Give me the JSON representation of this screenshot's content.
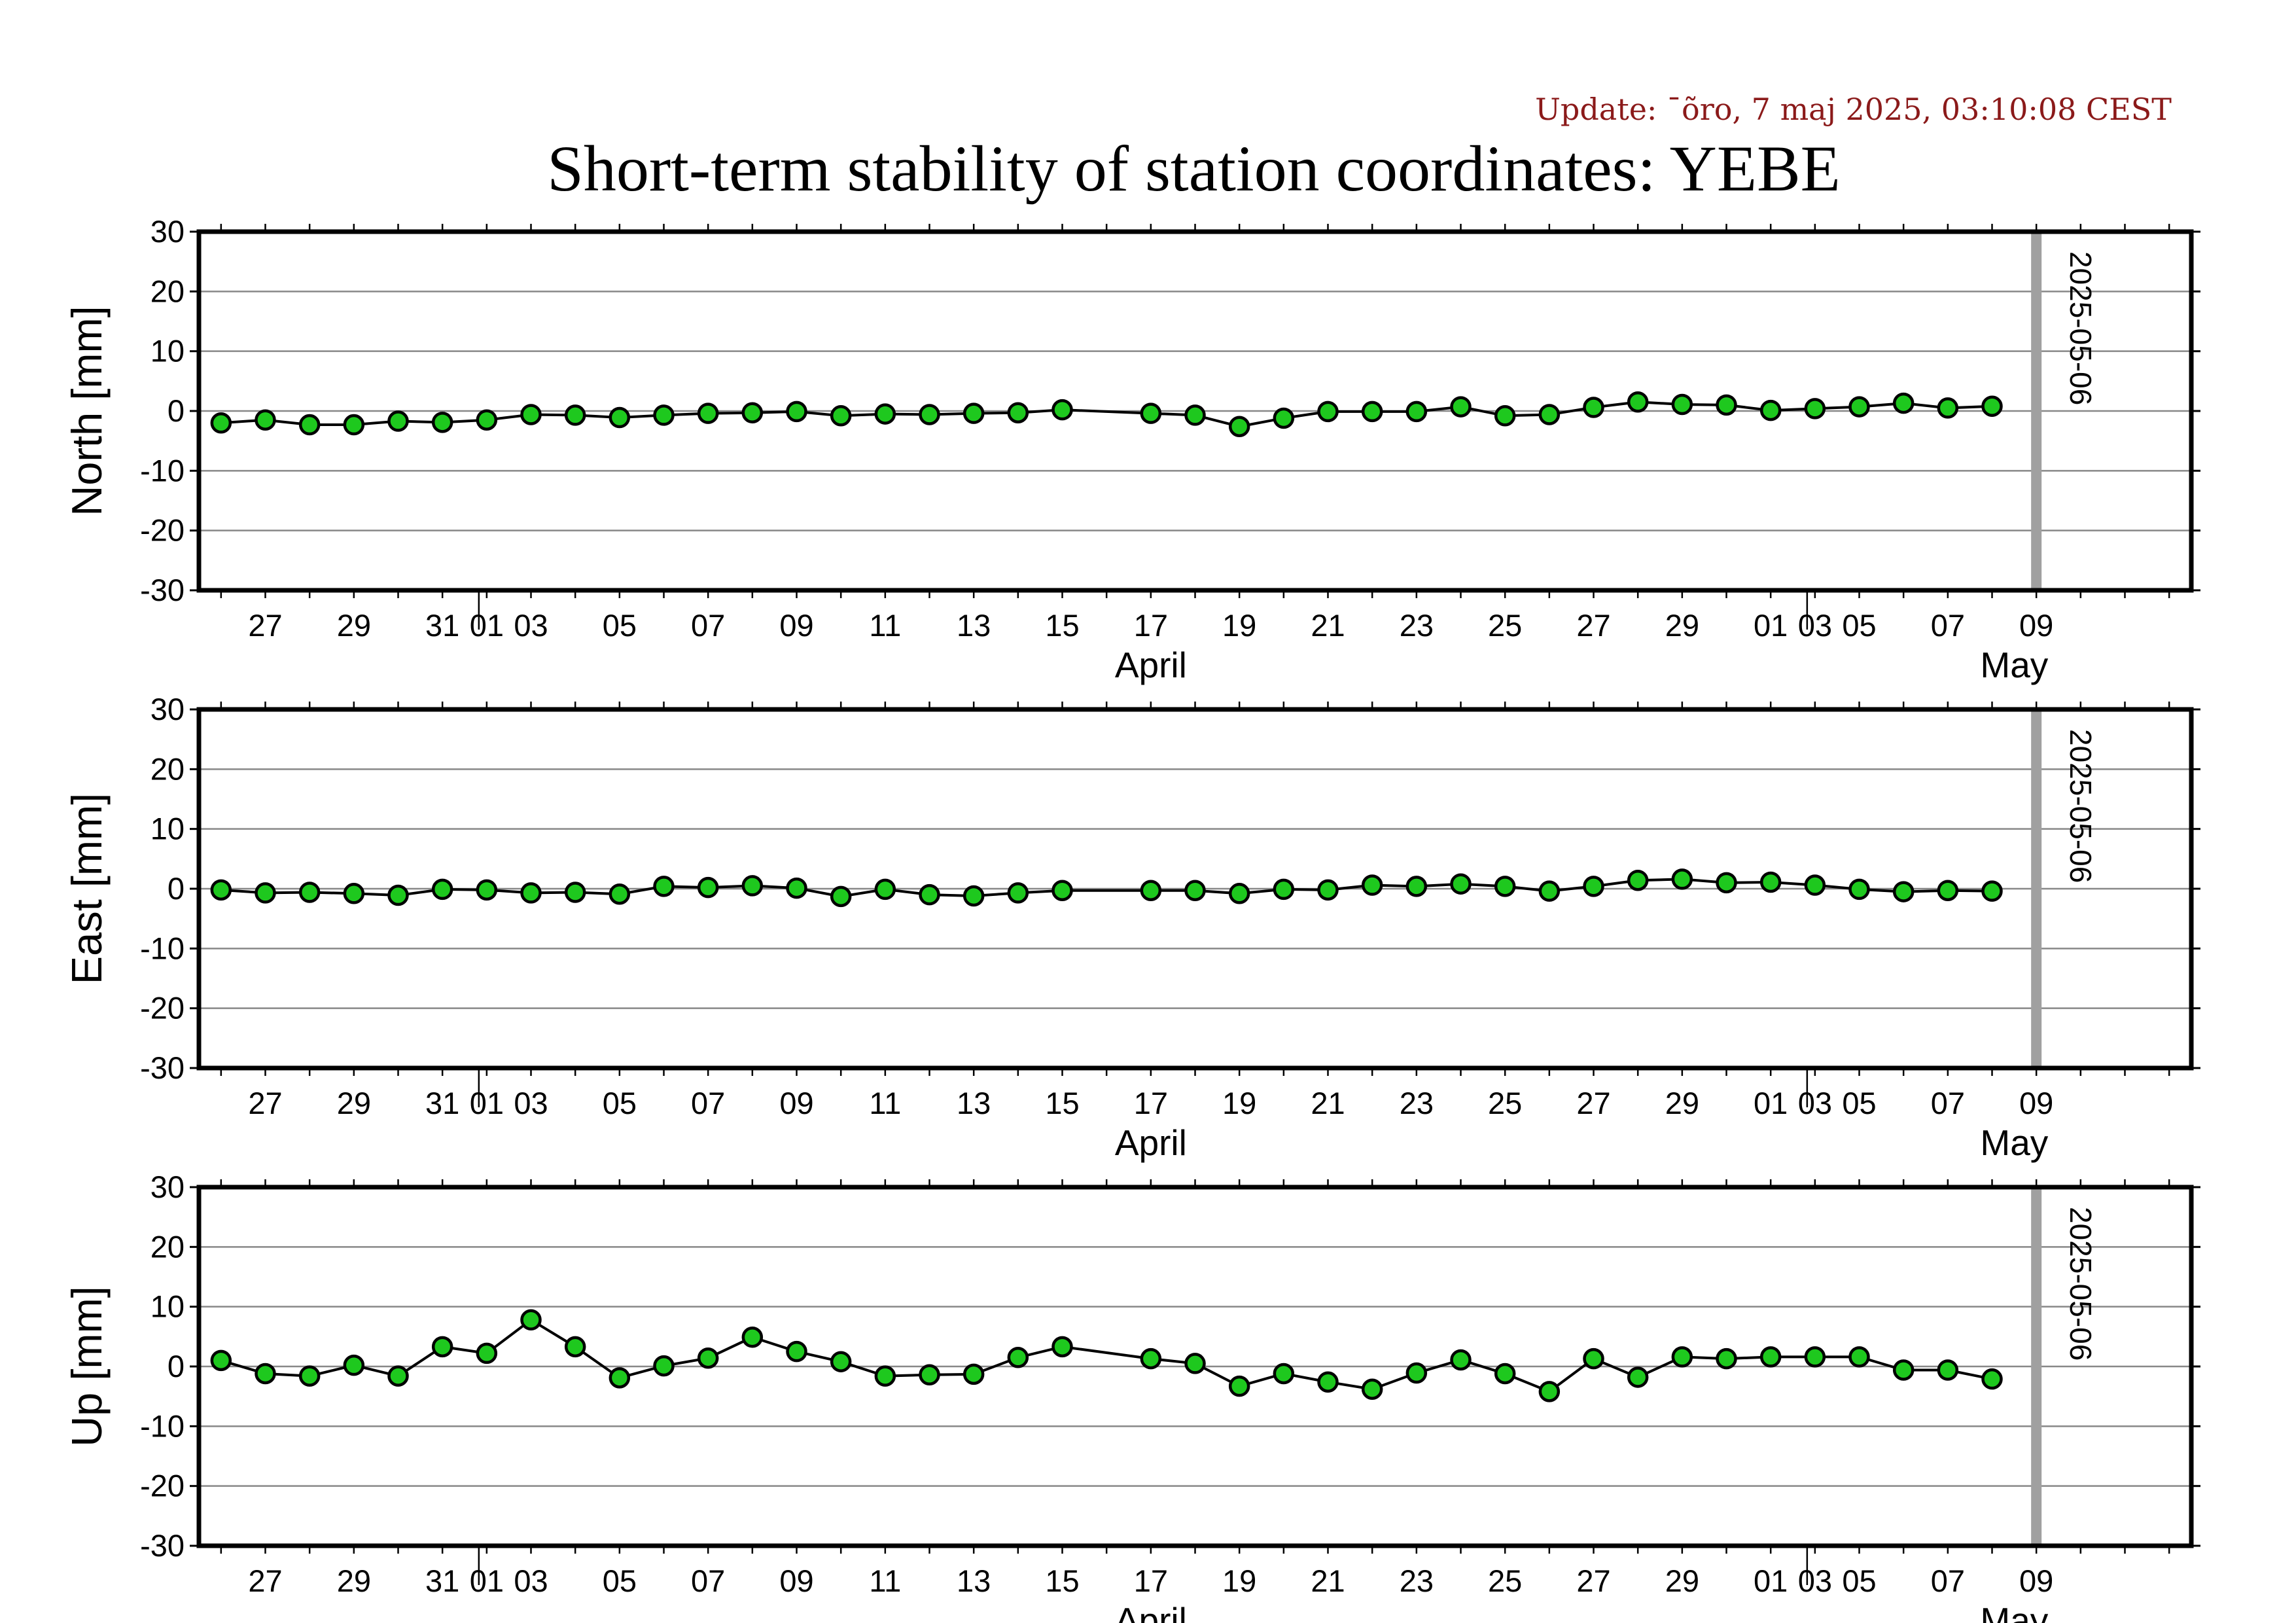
{
  "update": "Update: ¯õro, 7 maj 2025, 03:10:08 CEST",
  "title": "Short-term stability of station coordinates: YEBE",
  "colors": {
    "marker_fill": "#1ec81e",
    "marker_stroke": "#000000",
    "line": "#000000",
    "grid": "#888888",
    "current_day": "#a0a0a0",
    "update_text": "#8b1a1a"
  },
  "chart_data": [
    {
      "type": "line",
      "ylabel": "North [mm]",
      "ylim": [
        -30,
        30
      ],
      "yticks": [
        30,
        20,
        10,
        0,
        -10,
        -20,
        -30
      ],
      "xlim": [
        "2025-03-25T12:00",
        "2025-05-09T12:00"
      ],
      "marker_date": "2025-05-06",
      "x_tick_labels": [
        "27",
        "29",
        "31",
        "01",
        "03",
        "05",
        "07",
        "09",
        "11",
        "13",
        "15",
        "17",
        "19",
        "21",
        "23",
        "25",
        "27",
        "29",
        "01",
        "03",
        "05",
        "07",
        "09"
      ],
      "month_labels": [
        "April",
        "May"
      ],
      "grid": true,
      "series": [
        {
          "x": [
            "2025-03-26",
            "2025-03-27",
            "2025-03-28",
            "2025-03-29",
            "2025-03-30",
            "2025-03-31",
            "2025-04-01",
            "2025-04-02",
            "2025-04-03",
            "2025-04-04",
            "2025-04-05",
            "2025-04-06",
            "2025-04-07",
            "2025-04-08",
            "2025-04-09",
            "2025-04-10",
            "2025-04-11",
            "2025-04-12",
            "2025-04-13",
            "2025-04-14",
            "2025-04-16",
            "2025-04-17",
            "2025-04-18",
            "2025-04-19",
            "2025-04-20",
            "2025-04-21",
            "2025-04-22",
            "2025-04-23",
            "2025-04-24",
            "2025-04-25",
            "2025-04-26",
            "2025-04-27",
            "2025-04-28",
            "2025-04-29",
            "2025-04-30",
            "2025-05-01",
            "2025-05-02",
            "2025-05-03",
            "2025-05-04",
            "2025-05-05"
          ],
          "y": [
            -2,
            -1.5,
            -2.3,
            -2.3,
            -1.7,
            -1.9,
            -1.5,
            -0.6,
            -0.7,
            -1.1,
            -0.7,
            -0.4,
            -0.3,
            -0.1,
            -0.8,
            -0.5,
            -0.6,
            -0.4,
            -0.3,
            0.2,
            -0.4,
            -0.7,
            -2.6,
            -1.2,
            -0.1,
            -0.1,
            -0.1,
            0.7,
            -0.8,
            -0.6,
            0.6,
            1.5,
            1.1,
            1.0,
            0.1,
            0.4,
            0.7,
            1.3,
            0.5,
            0.8
          ]
        }
      ]
    },
    {
      "type": "line",
      "ylabel": "East [mm]",
      "ylim": [
        -30,
        30
      ],
      "yticks": [
        30,
        20,
        10,
        0,
        -10,
        -20,
        -30
      ],
      "xlim": [
        "2025-03-25T12:00",
        "2025-05-09T12:00"
      ],
      "marker_date": "2025-05-06",
      "x_tick_labels": [
        "27",
        "29",
        "31",
        "01",
        "03",
        "05",
        "07",
        "09",
        "11",
        "13",
        "15",
        "17",
        "19",
        "21",
        "23",
        "25",
        "27",
        "29",
        "01",
        "03",
        "05",
        "07",
        "09"
      ],
      "month_labels": [
        "April",
        "May"
      ],
      "grid": true,
      "series": [
        {
          "x": [
            "2025-03-26",
            "2025-03-27",
            "2025-03-28",
            "2025-03-29",
            "2025-03-30",
            "2025-03-31",
            "2025-04-01",
            "2025-04-02",
            "2025-04-03",
            "2025-04-04",
            "2025-04-05",
            "2025-04-06",
            "2025-04-07",
            "2025-04-08",
            "2025-04-09",
            "2025-04-10",
            "2025-04-11",
            "2025-04-12",
            "2025-04-13",
            "2025-04-14",
            "2025-04-16",
            "2025-04-17",
            "2025-04-18",
            "2025-04-19",
            "2025-04-20",
            "2025-04-21",
            "2025-04-22",
            "2025-04-23",
            "2025-04-24",
            "2025-04-25",
            "2025-04-26",
            "2025-04-27",
            "2025-04-28",
            "2025-04-29",
            "2025-04-30",
            "2025-05-01",
            "2025-05-02",
            "2025-05-03",
            "2025-05-04",
            "2025-05-05"
          ],
          "y": [
            -0.2,
            -0.7,
            -0.6,
            -0.8,
            -1.1,
            -0.1,
            -0.2,
            -0.7,
            -0.6,
            -0.9,
            0.4,
            0.2,
            0.5,
            0.1,
            -1.3,
            -0.1,
            -1.0,
            -1.2,
            -0.7,
            -0.3,
            -0.3,
            -0.3,
            -0.8,
            -0.1,
            -0.2,
            0.6,
            0.4,
            0.8,
            0.4,
            -0.4,
            0.4,
            1.4,
            1.6,
            1.0,
            1.1,
            0.6,
            -0.1,
            -0.5,
            -0.3,
            -0.4
          ]
        }
      ]
    },
    {
      "type": "line",
      "ylabel": "Up [mm]",
      "ylim": [
        -30,
        30
      ],
      "yticks": [
        30,
        20,
        10,
        0,
        -10,
        -20,
        -30
      ],
      "xlim": [
        "2025-03-25T12:00",
        "2025-05-09T12:00"
      ],
      "marker_date": "2025-05-06",
      "x_tick_labels": [
        "27",
        "29",
        "31",
        "01",
        "03",
        "05",
        "07",
        "09",
        "11",
        "13",
        "15",
        "17",
        "19",
        "21",
        "23",
        "25",
        "27",
        "29",
        "01",
        "03",
        "05",
        "07",
        "09"
      ],
      "month_labels": [
        "April",
        "May"
      ],
      "grid": true,
      "series": [
        {
          "x": [
            "2025-03-26",
            "2025-03-27",
            "2025-03-28",
            "2025-03-29",
            "2025-03-30",
            "2025-03-31",
            "2025-04-01",
            "2025-04-02",
            "2025-04-03",
            "2025-04-04",
            "2025-04-05",
            "2025-04-06",
            "2025-04-07",
            "2025-04-08",
            "2025-04-09",
            "2025-04-10",
            "2025-04-11",
            "2025-04-12",
            "2025-04-13",
            "2025-04-14",
            "2025-04-16",
            "2025-04-17",
            "2025-04-18",
            "2025-04-19",
            "2025-04-20",
            "2025-04-21",
            "2025-04-22",
            "2025-04-23",
            "2025-04-24",
            "2025-04-25",
            "2025-04-26",
            "2025-04-27",
            "2025-04-28",
            "2025-04-29",
            "2025-04-30",
            "2025-05-01",
            "2025-05-02",
            "2025-05-03",
            "2025-05-04",
            "2025-05-05"
          ],
          "y": [
            1.0,
            -1.2,
            -1.6,
            0.2,
            -1.6,
            3.3,
            2.2,
            7.8,
            3.3,
            -1.9,
            0.1,
            1.4,
            4.9,
            2.5,
            0.8,
            -1.6,
            -1.4,
            -1.3,
            1.5,
            3.3,
            1.3,
            0.5,
            -3.3,
            -1.2,
            -2.6,
            -3.8,
            -1.1,
            1.1,
            -1.2,
            -4.2,
            1.3,
            -1.8,
            1.6,
            1.3,
            1.6,
            1.6,
            1.6,
            -0.6,
            -0.6,
            -2.1
          ]
        }
      ]
    }
  ]
}
